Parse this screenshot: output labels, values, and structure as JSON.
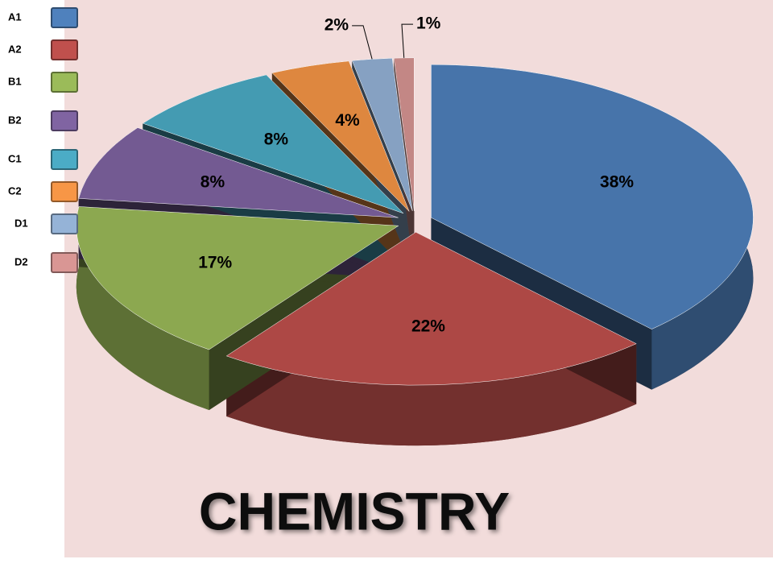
{
  "chart_data": {
    "type": "pie",
    "title": "CHEMISTRY",
    "categories": [
      "A1",
      "A2",
      "B1",
      "B2",
      "C1",
      "C2",
      "D1",
      "D2"
    ],
    "values": [
      38,
      22,
      17,
      8,
      8,
      4,
      2,
      1
    ],
    "value_labels": [
      "38%",
      "22%",
      "17%",
      "8%",
      "8%",
      "4%",
      "2%",
      "1%"
    ],
    "colors": [
      "#4f81bd",
      "#c0504d",
      "#9bbb59",
      "#8064a2",
      "#4bacc6",
      "#f79646",
      "#95b3d7",
      "#d99694"
    ],
    "legend": "left"
  }
}
